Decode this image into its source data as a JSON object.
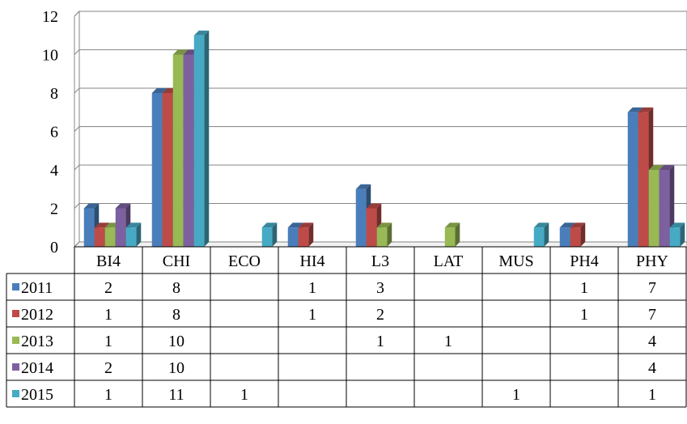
{
  "chart_data": {
    "type": "bar",
    "title": "",
    "xlabel": "",
    "ylabel": "",
    "ylim": [
      0,
      12
    ],
    "yticks": [
      0,
      2,
      4,
      6,
      8,
      10,
      12
    ],
    "grid": true,
    "legend": "data-table-left",
    "style": "3d-clustered-column-with-data-table",
    "categories": [
      "BI4",
      "CHI",
      "ECO",
      "HI4",
      "L3",
      "LAT",
      "MUS",
      "PH4",
      "PHY"
    ],
    "series": [
      {
        "name": "2011",
        "color": "#4a7ebb",
        "values": [
          2,
          8,
          null,
          1,
          3,
          null,
          null,
          1,
          7
        ]
      },
      {
        "name": "2012",
        "color": "#be4b48",
        "values": [
          1,
          8,
          null,
          1,
          2,
          null,
          null,
          1,
          7
        ]
      },
      {
        "name": "2013",
        "color": "#98b954",
        "values": [
          1,
          10,
          null,
          null,
          1,
          1,
          null,
          null,
          4
        ]
      },
      {
        "name": "2014",
        "color": "#7d60a0",
        "values": [
          2,
          10,
          null,
          null,
          null,
          null,
          null,
          null,
          4
        ]
      },
      {
        "name": "2015",
        "color": "#46aac5",
        "values": [
          1,
          11,
          1,
          null,
          null,
          null,
          1,
          null,
          1
        ]
      }
    ]
  }
}
